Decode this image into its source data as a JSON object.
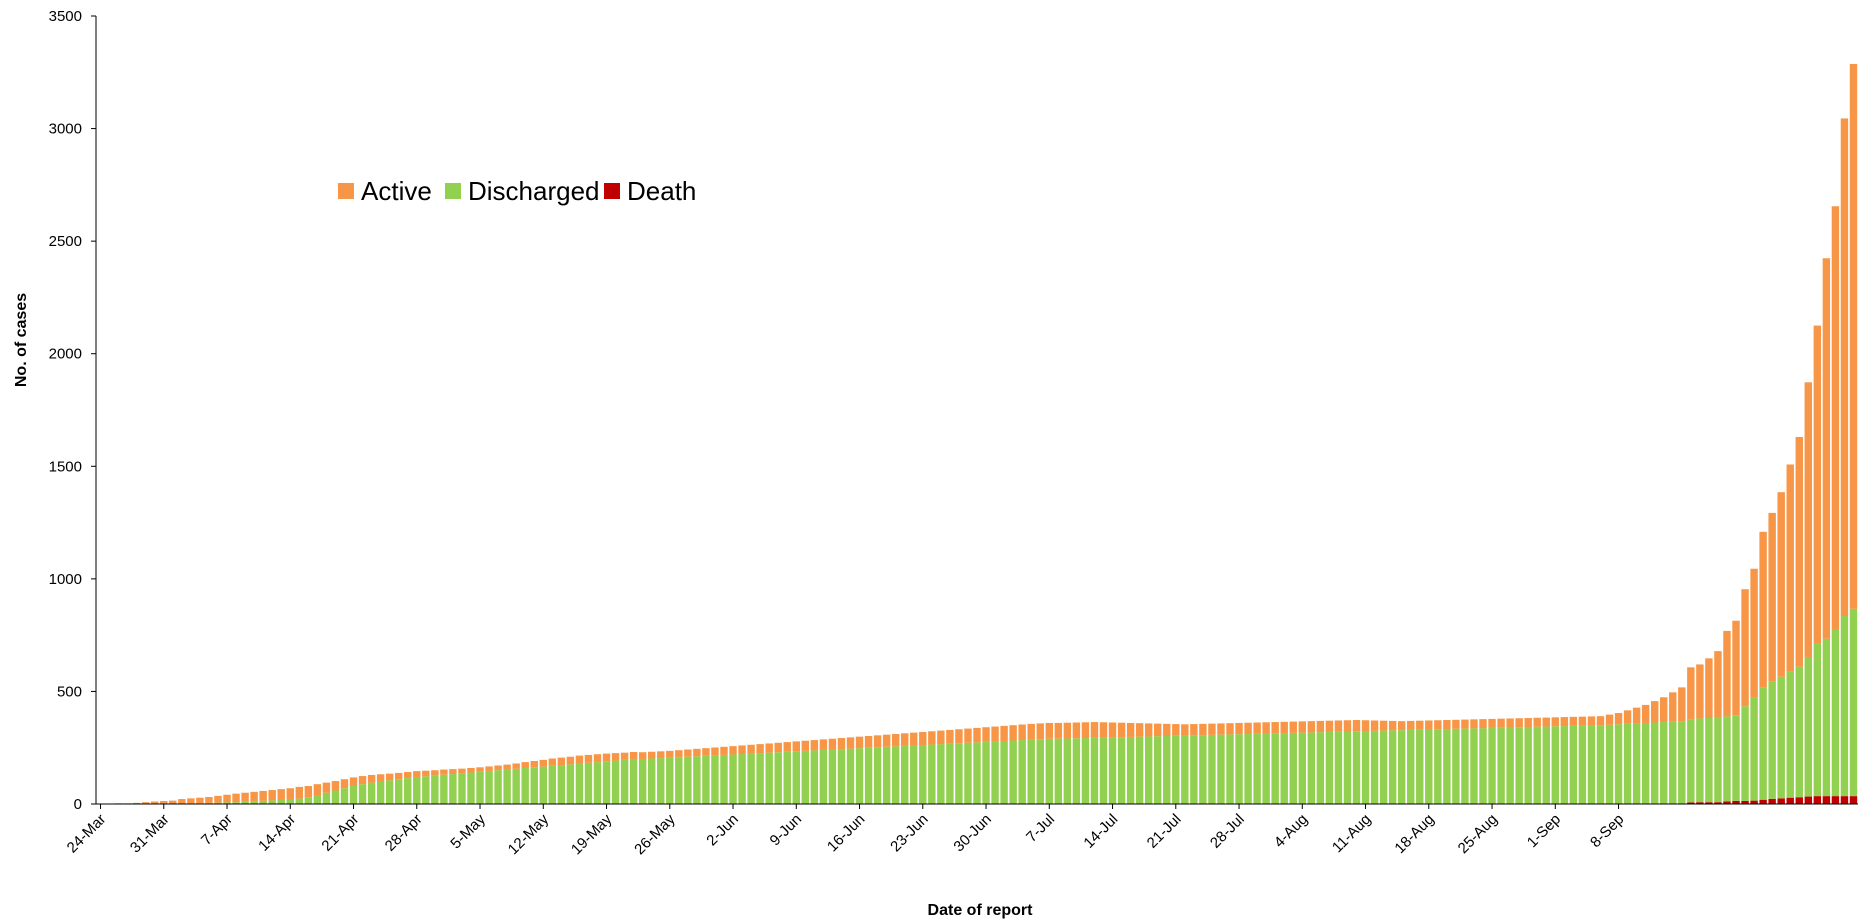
{
  "chart_data": {
    "type": "bar",
    "stacked": true,
    "xlabel": "Date of report",
    "ylabel": "No. of cases",
    "ylim": [
      0,
      3500
    ],
    "yticks": [
      0,
      500,
      1000,
      1500,
      2000,
      2500,
      3000,
      3500
    ],
    "grid": false,
    "legend_position": "upper-left",
    "date_tick_labels": [
      "24-Mar",
      "31-Mar",
      "7-Apr",
      "14-Apr",
      "21-Apr",
      "28-Apr",
      "5-May",
      "12-May",
      "19-May",
      "26-May",
      "2-Jun",
      "9-Jun",
      "16-Jun",
      "23-Jun",
      "30-Jun",
      "7-Jul",
      "14-Jul",
      "21-Jul",
      "28-Jul",
      "4-Aug",
      "11-Aug",
      "18-Aug",
      "25-Aug",
      "1-Sep",
      "8-Sep"
    ],
    "tick_every_n_categories": 7,
    "series": [
      {
        "name": "Active",
        "color": "#f79646",
        "values": [
          2,
          2,
          3,
          3,
          5,
          8,
          10,
          12,
          14,
          20,
          22,
          24,
          26,
          30,
          34,
          38,
          40,
          42,
          44,
          46,
          48,
          50,
          52,
          50,
          48,
          45,
          42,
          40,
          38,
          36,
          34,
          32,
          30,
          28,
          27,
          26,
          25,
          24,
          23,
          22,
          21,
          20,
          20,
          20,
          21,
          22,
          24,
          26,
          28,
          30,
          32,
          33,
          34,
          35,
          35,
          35,
          34,
          33,
          32,
          31,
          30,
          30,
          30,
          30,
          31,
          32,
          33,
          34,
          35,
          36,
          37,
          38,
          39,
          40,
          41,
          42,
          43,
          44,
          45,
          46,
          47,
          48,
          49,
          50,
          51,
          52,
          53,
          54,
          55,
          56,
          57,
          58,
          59,
          60,
          61,
          62,
          63,
          64,
          65,
          66,
          67,
          68,
          69,
          70,
          70,
          70,
          70,
          70,
          70,
          70,
          70,
          68,
          66,
          64,
          62,
          60,
          58,
          56,
          54,
          52,
          50,
          50,
          50,
          50,
          50,
          50,
          50,
          50,
          50,
          50,
          50,
          50,
          50,
          50,
          50,
          50,
          50,
          50,
          50,
          50,
          48,
          46,
          44,
          42,
          40,
          40,
          40,
          40,
          40,
          40,
          40,
          40,
          40,
          40,
          40,
          40,
          40,
          40,
          40,
          40,
          40,
          40,
          40,
          40,
          40,
          40,
          40,
          45,
          50,
          60,
          70,
          80,
          95,
          110,
          130,
          150,
          230,
          240,
          265,
          295,
          380,
          420,
          520,
          570,
          690,
          750,
          820,
          920,
          1020,
          1220,
          1410,
          1690,
          1880,
          2210,
          2420
        ]
      },
      {
        "name": "Discharged",
        "color": "#92d050",
        "values": [
          0,
          0,
          0,
          0,
          0,
          0,
          1,
          1,
          1,
          2,
          3,
          4,
          5,
          6,
          7,
          8,
          10,
          12,
          14,
          16,
          18,
          20,
          24,
          30,
          40,
          50,
          60,
          70,
          80,
          88,
          95,
          100,
          105,
          110,
          115,
          120,
          123,
          126,
          130,
          133,
          136,
          140,
          143,
          147,
          150,
          153,
          156,
          160,
          163,
          166,
          170,
          173,
          176,
          180,
          183,
          186,
          190,
          193,
          196,
          200,
          200,
          202,
          204,
          206,
          208,
          210,
          212,
          214,
          216,
          218,
          220,
          222,
          224,
          226,
          228,
          230,
          232,
          234,
          236,
          238,
          240,
          242,
          244,
          246,
          248,
          250,
          252,
          254,
          256,
          258,
          260,
          262,
          264,
          266,
          268,
          270,
          272,
          274,
          276,
          278,
          280,
          282,
          284,
          286,
          288,
          290,
          290,
          291,
          292,
          293,
          294,
          295,
          296,
          297,
          298,
          299,
          300,
          301,
          302,
          303,
          304,
          305,
          306,
          307,
          308,
          309,
          310,
          311,
          312,
          313,
          314,
          315,
          316,
          317,
          318,
          319,
          320,
          321,
          322,
          323,
          324,
          325,
          326,
          327,
          328,
          329,
          330,
          331,
          332,
          333,
          334,
          335,
          336,
          337,
          338,
          339,
          340,
          341,
          342,
          343,
          344,
          345,
          346,
          347,
          348,
          349,
          350,
          352,
          354,
          356,
          358,
          360,
          362,
          364,
          366,
          368,
          370,
          372,
          374,
          376,
          378,
          380,
          420,
          460,
          500,
          520,
          540,
          560,
          580,
          620,
          680,
          699,
          740,
          800,
          832
        ]
      },
      {
        "name": "Death",
        "color": "#c00000",
        "values": [
          0,
          0,
          0,
          0,
          0,
          0,
          0,
          0,
          0,
          0,
          0,
          0,
          0,
          0,
          0,
          0,
          0,
          0,
          0,
          0,
          0,
          0,
          0,
          0,
          0,
          0,
          0,
          0,
          0,
          0,
          0,
          0,
          0,
          0,
          0,
          0,
          0,
          0,
          0,
          0,
          0,
          0,
          0,
          0,
          0,
          0,
          0,
          0,
          0,
          0,
          0,
          0,
          0,
          0,
          0,
          0,
          0,
          0,
          0,
          0,
          0,
          0,
          0,
          0,
          0,
          0,
          0,
          0,
          0,
          0,
          0,
          0,
          0,
          0,
          0,
          0,
          0,
          0,
          0,
          0,
          0,
          0,
          0,
          0,
          0,
          0,
          0,
          0,
          0,
          0,
          0,
          0,
          0,
          0,
          0,
          0,
          0,
          0,
          0,
          0,
          0,
          0,
          0,
          0,
          0,
          0,
          0,
          0,
          0,
          0,
          0,
          0,
          0,
          0,
          0,
          0,
          0,
          0,
          0,
          0,
          0,
          0,
          0,
          0,
          0,
          0,
          0,
          0,
          0,
          0,
          0,
          0,
          0,
          0,
          0,
          0,
          0,
          0,
          0,
          0,
          0,
          0,
          0,
          0,
          0,
          0,
          0,
          0,
          0,
          0,
          0,
          0,
          0,
          0,
          0,
          0,
          0,
          0,
          0,
          0,
          0,
          0,
          0,
          0,
          0,
          0,
          0,
          0,
          0,
          0,
          0,
          0,
          0,
          0,
          0,
          0,
          7,
          8,
          8,
          8,
          11,
          14,
          14,
          15,
          19,
          23,
          25,
          28,
          30,
          33,
          35,
          35,
          35,
          35,
          35
        ]
      }
    ]
  }
}
